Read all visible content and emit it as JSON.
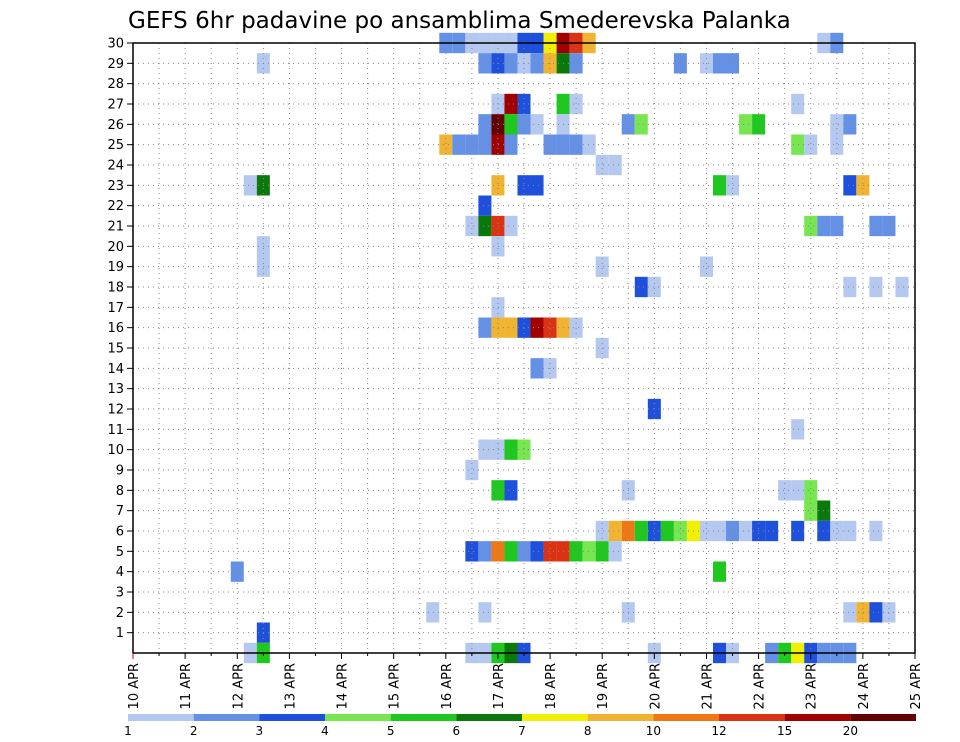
{
  "chart_data": {
    "type": "heatmap",
    "title": "GEFS 6hr padavine po ansamblima Smederevska Palanka",
    "x_tick_labels": [
      "10 APR",
      "11 APR",
      "12 APR",
      "13 APR",
      "14 APR",
      "15 APR",
      "16 APR",
      "17 APR",
      "18 APR",
      "19 APR",
      "20 APR",
      "21 APR",
      "22 APR",
      "23 APR",
      "24 APR",
      "25 APR"
    ],
    "x_range_days": [
      10,
      25
    ],
    "y_tick_labels": [
      "1",
      "2",
      "3",
      "4",
      "5",
      "6",
      "7",
      "8",
      "9",
      "10",
      "11",
      "12",
      "13",
      "14",
      "15",
      "16",
      "17",
      "18",
      "19",
      "20",
      "21",
      "22",
      "23",
      "24",
      "25",
      "26",
      "27",
      "28",
      "29",
      "30"
    ],
    "y_range_members": [
      0,
      30
    ],
    "grid": "dotted",
    "colorbar": {
      "position": "bottom",
      "labels": [
        "1",
        "2",
        "3",
        "4",
        "5",
        "6",
        "7",
        "8",
        "10",
        "12",
        "15",
        "20"
      ],
      "colors": [
        "#b4c8f0",
        "#6490e6",
        "#1e50dc",
        "#78e650",
        "#1ec81e",
        "#0a780a",
        "#f0f000",
        "#f0b432",
        "#f07814",
        "#dc3214",
        "#a00000",
        "#640000"
      ]
    },
    "cells": [
      [
        30,
        16.0,
        2
      ],
      [
        30,
        16.25,
        2
      ],
      [
        30,
        16.5,
        1
      ],
      [
        30,
        16.75,
        1
      ],
      [
        30,
        17.0,
        1
      ],
      [
        30,
        17.25,
        1
      ],
      [
        30,
        17.5,
        3
      ],
      [
        30,
        17.75,
        3
      ],
      [
        30,
        18.0,
        7
      ],
      [
        30,
        18.25,
        11
      ],
      [
        30,
        18.5,
        10
      ],
      [
        30,
        18.75,
        8
      ],
      [
        30,
        23.25,
        1
      ],
      [
        30,
        23.5,
        2
      ],
      [
        29,
        12.5,
        1
      ],
      [
        29,
        16.75,
        2
      ],
      [
        29,
        17.0,
        3
      ],
      [
        29,
        17.25,
        2
      ],
      [
        29,
        17.5,
        1
      ],
      [
        29,
        17.75,
        2
      ],
      [
        29,
        18.0,
        8
      ],
      [
        29,
        18.25,
        6
      ],
      [
        29,
        18.5,
        2
      ],
      [
        29,
        20.5,
        2
      ],
      [
        29,
        21.0,
        1
      ],
      [
        29,
        21.25,
        2
      ],
      [
        29,
        21.5,
        2
      ],
      [
        27,
        17.0,
        1
      ],
      [
        27,
        17.25,
        11
      ],
      [
        27,
        17.5,
        3
      ],
      [
        27,
        18.25,
        5
      ],
      [
        27,
        18.5,
        1
      ],
      [
        27,
        22.75,
        1
      ],
      [
        26,
        16.75,
        2
      ],
      [
        26,
        17.0,
        12
      ],
      [
        26,
        17.25,
        5
      ],
      [
        26,
        17.5,
        2
      ],
      [
        26,
        17.75,
        1
      ],
      [
        26,
        18.25,
        1
      ],
      [
        26,
        19.5,
        2
      ],
      [
        26,
        19.75,
        4
      ],
      [
        26,
        21.75,
        4
      ],
      [
        26,
        22.0,
        5
      ],
      [
        26,
        23.5,
        1
      ],
      [
        26,
        23.75,
        2
      ],
      [
        25,
        16.0,
        8
      ],
      [
        25,
        16.25,
        2
      ],
      [
        25,
        16.5,
        2
      ],
      [
        25,
        16.75,
        2
      ],
      [
        25,
        17.0,
        11
      ],
      [
        25,
        17.25,
        2
      ],
      [
        25,
        18.0,
        2
      ],
      [
        25,
        18.25,
        2
      ],
      [
        25,
        18.5,
        2
      ],
      [
        25,
        18.75,
        1
      ],
      [
        25,
        22.75,
        4
      ],
      [
        25,
        23.0,
        1
      ],
      [
        25,
        23.5,
        1
      ],
      [
        24,
        19.0,
        1
      ],
      [
        24,
        19.25,
        1
      ],
      [
        23,
        12.25,
        1
      ],
      [
        23,
        12.5,
        6
      ],
      [
        23,
        17.0,
        8
      ],
      [
        23,
        17.5,
        3
      ],
      [
        23,
        17.75,
        3
      ],
      [
        23,
        21.25,
        5
      ],
      [
        23,
        21.5,
        1
      ],
      [
        23,
        23.75,
        3
      ],
      [
        23,
        24.0,
        8
      ],
      [
        22,
        16.75,
        3
      ],
      [
        21,
        16.5,
        1
      ],
      [
        21,
        16.75,
        6
      ],
      [
        21,
        17.0,
        10
      ],
      [
        21,
        17.25,
        1
      ],
      [
        21,
        23.0,
        4
      ],
      [
        21,
        23.25,
        2
      ],
      [
        21,
        23.5,
        2
      ],
      [
        21,
        24.25,
        2
      ],
      [
        21,
        24.5,
        2
      ],
      [
        20,
        17.0,
        1
      ],
      [
        20,
        12.5,
        1
      ],
      [
        19,
        12.5,
        1
      ],
      [
        19,
        19.0,
        1
      ],
      [
        19,
        21.0,
        1
      ],
      [
        18,
        19.75,
        3
      ],
      [
        18,
        20.0,
        1
      ],
      [
        18,
        23.75,
        1
      ],
      [
        18,
        24.25,
        1
      ],
      [
        18,
        24.75,
        1
      ],
      [
        17,
        17.0,
        1
      ],
      [
        16,
        16.75,
        2
      ],
      [
        16,
        17.0,
        8
      ],
      [
        16,
        17.25,
        8
      ],
      [
        16,
        17.5,
        3
      ],
      [
        16,
        17.75,
        11
      ],
      [
        16,
        18.0,
        10
      ],
      [
        16,
        18.25,
        8
      ],
      [
        16,
        18.5,
        1
      ],
      [
        15,
        19.0,
        1
      ],
      [
        14,
        17.75,
        2
      ],
      [
        14,
        18.0,
        1
      ],
      [
        12,
        20.0,
        3
      ],
      [
        11,
        22.75,
        1
      ],
      [
        10,
        16.75,
        1
      ],
      [
        10,
        17.0,
        1
      ],
      [
        10,
        17.25,
        5
      ],
      [
        10,
        17.5,
        4
      ],
      [
        9,
        16.5,
        1
      ],
      [
        8,
        17.0,
        5
      ],
      [
        8,
        17.25,
        3
      ],
      [
        8,
        19.5,
        1
      ],
      [
        8,
        22.5,
        1
      ],
      [
        8,
        22.75,
        1
      ],
      [
        8,
        23.0,
        4
      ],
      [
        7,
        23.0,
        4
      ],
      [
        7,
        23.25,
        6
      ],
      [
        6,
        19.0,
        1
      ],
      [
        6,
        19.25,
        8
      ],
      [
        6,
        19.5,
        9
      ],
      [
        6,
        19.75,
        5
      ],
      [
        6,
        20.0,
        3
      ],
      [
        6,
        20.25,
        5
      ],
      [
        6,
        20.5,
        4
      ],
      [
        6,
        20.75,
        7
      ],
      [
        6,
        21.0,
        1
      ],
      [
        6,
        21.25,
        1
      ],
      [
        6,
        21.5,
        2
      ],
      [
        6,
        21.75,
        1
      ],
      [
        6,
        22.0,
        3
      ],
      [
        6,
        22.25,
        3
      ],
      [
        6,
        22.75,
        3
      ],
      [
        6,
        23.25,
        3
      ],
      [
        6,
        23.5,
        1
      ],
      [
        6,
        23.75,
        1
      ],
      [
        6,
        24.25,
        1
      ],
      [
        5,
        16.5,
        3
      ],
      [
        5,
        16.75,
        2
      ],
      [
        5,
        17.0,
        9
      ],
      [
        5,
        17.25,
        5
      ],
      [
        5,
        17.5,
        2
      ],
      [
        5,
        17.75,
        3
      ],
      [
        5,
        18.0,
        10
      ],
      [
        5,
        18.25,
        10
      ],
      [
        5,
        18.5,
        5
      ],
      [
        5,
        18.75,
        4
      ],
      [
        5,
        19.0,
        5
      ],
      [
        5,
        19.25,
        1
      ],
      [
        4,
        12.0,
        2
      ],
      [
        4,
        21.25,
        5
      ],
      [
        2,
        15.75,
        1
      ],
      [
        2,
        16.75,
        1
      ],
      [
        2,
        19.5,
        1
      ],
      [
        2,
        23.75,
        1
      ],
      [
        2,
        24.0,
        8
      ],
      [
        2,
        24.25,
        3
      ],
      [
        2,
        24.5,
        1
      ],
      [
        1,
        12.5,
        3
      ],
      [
        0,
        16.5,
        1
      ],
      [
        0,
        12.25,
        1
      ],
      [
        0,
        12.5,
        5
      ],
      [
        0,
        16.75,
        1
      ],
      [
        0,
        17.0,
        5
      ],
      [
        0,
        17.25,
        6
      ],
      [
        0,
        17.5,
        3
      ],
      [
        0,
        20.0,
        1
      ],
      [
        0,
        21.25,
        3
      ],
      [
        0,
        21.5,
        1
      ],
      [
        0,
        22.25,
        2
      ],
      [
        0,
        22.5,
        5
      ],
      [
        0,
        22.75,
        7
      ],
      [
        0,
        23.0,
        3
      ],
      [
        0,
        23.25,
        2
      ],
      [
        0,
        23.5,
        2
      ],
      [
        0,
        23.75,
        2
      ]
    ]
  }
}
